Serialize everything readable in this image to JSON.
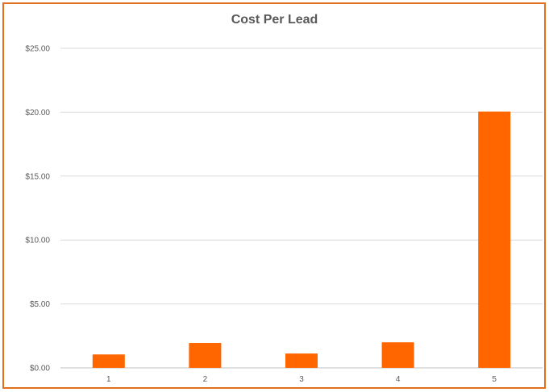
{
  "chart_data": {
    "type": "bar",
    "title": "Cost Per Lead",
    "xlabel": "",
    "ylabel": "",
    "categories": [
      "1",
      "2",
      "3",
      "4",
      "5"
    ],
    "values": [
      1.05,
      1.95,
      1.12,
      2.0,
      20.05
    ],
    "ylim": [
      0,
      25
    ],
    "y_ticks": [
      0,
      5,
      10,
      15,
      20,
      25
    ],
    "y_tick_labels": [
      "$0.00",
      "$5.00",
      "$10.00",
      "$15.00",
      "$20.00",
      "$25.00"
    ],
    "grid": true,
    "legend": "none",
    "bar_color": "#ff6600",
    "frame_color": "#e07020"
  }
}
